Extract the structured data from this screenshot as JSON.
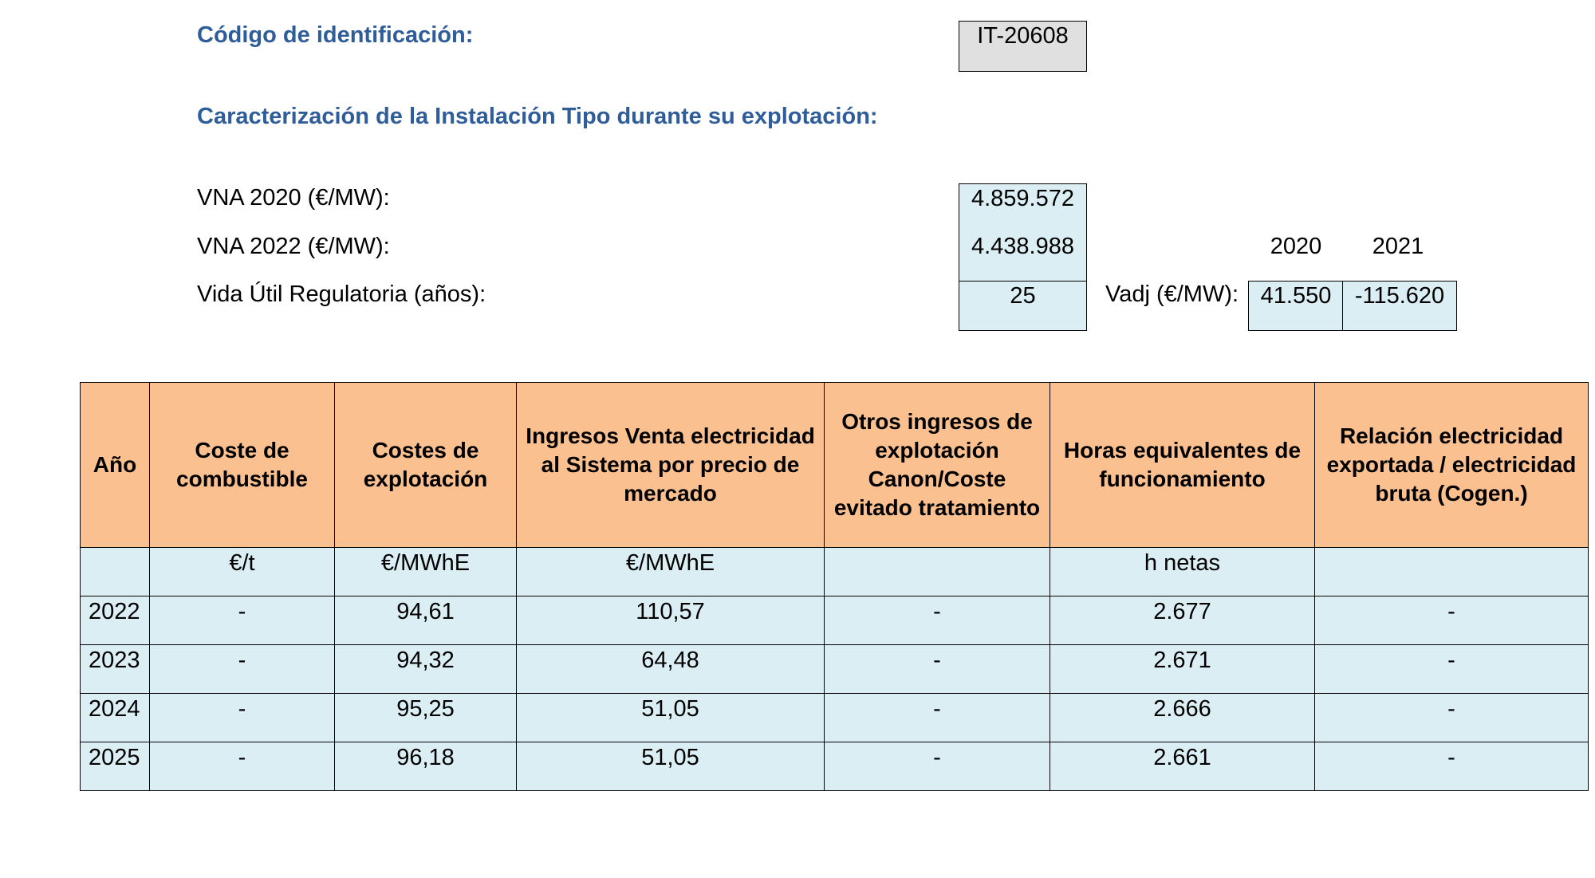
{
  "header": {
    "codigo_label": "Código de identificación:",
    "codigo_value": "IT-20608",
    "caracterizacion": "Caracterización de la Instalación Tipo durante su explotación:"
  },
  "params": {
    "vna2020_label": "VNA 2020 (€/MW):",
    "vna2020_value": "4.859.572",
    "vna2022_label": "VNA 2022 (€/MW):",
    "vna2022_value": "4.438.988",
    "vida_label": "Vida Útil Regulatoria (años):",
    "vida_value": "25",
    "vadj_label": "Vadj (€/MW):",
    "vadj_year1": "2020",
    "vadj_year2": "2021",
    "vadj_value1": "41.550",
    "vadj_value2": "-115.620"
  },
  "table": {
    "headers": [
      "Año",
      "Coste de combustible",
      "Costes de explotación",
      "Ingresos Venta electricidad al Sistema por precio de mercado",
      "Otros ingresos de explotación Canon/Coste evitado tratamiento",
      "Horas equivalentes de funcionamiento",
      "Relación electricidad exportada / electricidad bruta (Cogen.)"
    ],
    "units": [
      "",
      "€/t",
      "€/MWhE",
      "€/MWhE",
      "",
      "h netas",
      ""
    ],
    "rows": [
      [
        "2022",
        "-",
        "94,61",
        "110,57",
        "-",
        "2.677",
        "-"
      ],
      [
        "2023",
        "-",
        "94,32",
        "64,48",
        "-",
        "2.671",
        "-"
      ],
      [
        "2024",
        "-",
        "95,25",
        "51,05",
        "-",
        "2.666",
        "-"
      ],
      [
        "2025",
        "-",
        "96,18",
        "51,05",
        "-",
        "2.661",
        "-"
      ]
    ]
  }
}
